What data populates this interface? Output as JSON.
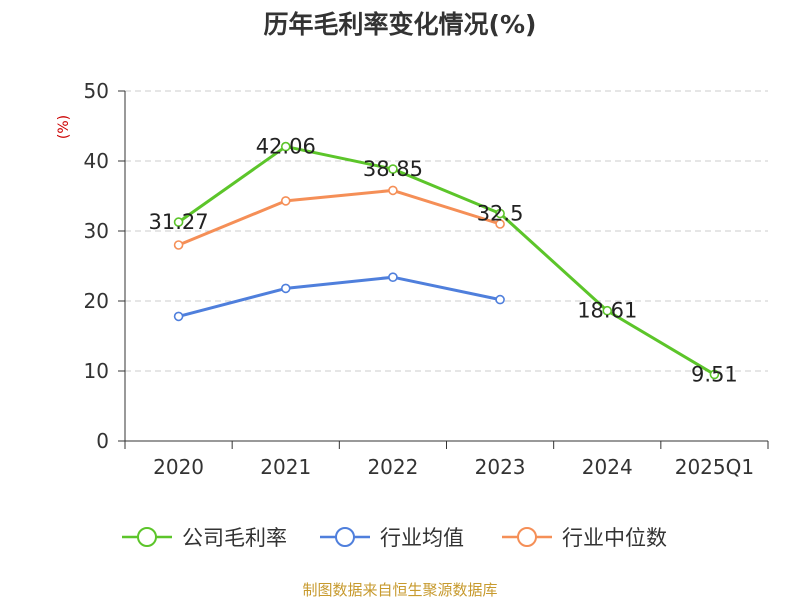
{
  "chart_data": {
    "type": "line",
    "title": "历年毛利率变化情况(%)",
    "ylabel": "(%)",
    "xlabel": "",
    "ylim": [
      0,
      50
    ],
    "yticks": [
      0,
      10,
      20,
      30,
      40,
      50
    ],
    "grid": true,
    "legend_position": "bottom",
    "categories": [
      "2020",
      "2021",
      "2022",
      "2023",
      "2024",
      "2025Q1"
    ],
    "series": [
      {
        "name": "公司毛利率",
        "color": "#5cc52a",
        "values": [
          31.27,
          42.06,
          38.85,
          32.5,
          18.61,
          9.51
        ],
        "labels": [
          "31.27",
          "42.06",
          "38.85",
          "32.5",
          "18.61",
          "9.51"
        ]
      },
      {
        "name": "行业均值",
        "color": "#4f7fdc",
        "values": [
          17.8,
          21.8,
          23.4,
          20.2,
          null,
          null
        ]
      },
      {
        "name": "行业中位数",
        "color": "#f58f57",
        "values": [
          28.0,
          34.3,
          35.8,
          31.0,
          null,
          null
        ]
      }
    ]
  },
  "source_text": "制图数据来自恒生聚源数据库",
  "colors": {
    "ylabel": "#cc0000",
    "source": "#c79a2e",
    "grid": "#cccccc",
    "axis": "#333333"
  }
}
